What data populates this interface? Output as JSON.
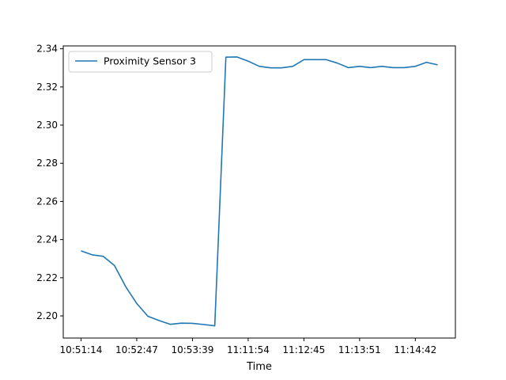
{
  "chart_data": {
    "type": "line",
    "xlabel": "Time",
    "ylabel": "",
    "title": "",
    "ylim": [
      2.1884,
      2.3415
    ],
    "yticks": [
      2.2,
      2.22,
      2.24,
      2.26,
      2.28,
      2.3,
      2.32,
      2.34
    ],
    "xticks": [
      {
        "index": 0,
        "label": "10:51:14"
      },
      {
        "index": 5,
        "label": "10:52:47"
      },
      {
        "index": 10,
        "label": "10:53:39"
      },
      {
        "index": 15,
        "label": "11:11:54"
      },
      {
        "index": 20,
        "label": "11:12:45"
      },
      {
        "index": 25,
        "label": "11:13:51"
      },
      {
        "index": 30,
        "label": "11:14:42"
      }
    ],
    "legend": {
      "position": "upper-left"
    },
    "series": [
      {
        "name": "Proximity Sensor 3",
        "color": "#1f77b4",
        "values": [
          2.2341,
          2.232,
          2.2312,
          2.2264,
          2.2154,
          2.2065,
          2.1998,
          2.1976,
          2.1956,
          2.1962,
          2.1961,
          2.1955,
          2.1948,
          2.3356,
          2.3357,
          2.3335,
          2.3308,
          2.33,
          2.33,
          2.3308,
          2.3343,
          2.3343,
          2.3343,
          2.3325,
          2.3301,
          2.3308,
          2.3301,
          2.3308,
          2.3301,
          2.3301,
          2.3308,
          2.3329,
          2.3316
        ]
      }
    ]
  }
}
